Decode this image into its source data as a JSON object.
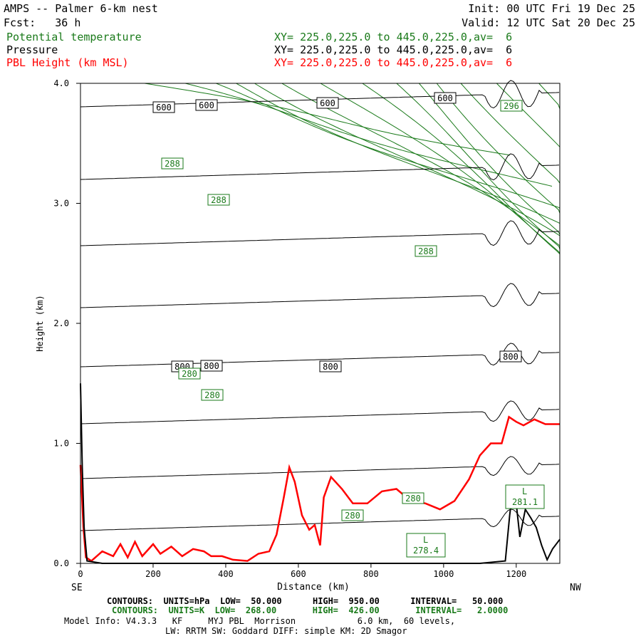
{
  "header": {
    "title": "AMPS -- Palmer 6-km nest",
    "fcst": "Fcst:   36 h",
    "init": "Init: 00 UTC Fri 19 Dec 25",
    "valid": "Valid: 12 UTC Sat 20 Dec 25",
    "fields": [
      {
        "name": "Potential temperature",
        "xy": "XY= 225.0,225.0 to 445.0,225.0,av=  6",
        "color": "#1a7a1a"
      },
      {
        "name": "Pressure",
        "xy": "XY= 225.0,225.0 to 445.0,225.0,av=  6",
        "color": "#000000"
      },
      {
        "name": "PBL Height (km MSL)",
        "xy": "XY= 225.0,225.0 to 445.0,225.0,av=  6",
        "color": "#ff0000"
      }
    ]
  },
  "chart_data": {
    "type": "line",
    "xlabel": "Distance (km)",
    "ylabel": "Height (km)",
    "xlim": [
      0,
      1320
    ],
    "ylim": [
      0,
      4
    ],
    "x_ticks": [
      "0",
      "200",
      "400",
      "600",
      "800",
      "1000",
      "1200"
    ],
    "y_ticks": [
      "0.0",
      "1.0",
      "2.0",
      "3.0",
      "4.0"
    ],
    "left_end_label": "SE",
    "right_end_label": "NW",
    "pressure_labels": [
      "600",
      "600",
      "600",
      "600",
      "800",
      "800",
      "800",
      "800"
    ],
    "theta_labels": [
      "296",
      "288",
      "288",
      "288",
      "280",
      "280",
      "280",
      "280"
    ],
    "low_labels": [
      {
        "letter": "L",
        "value": "278.4"
      },
      {
        "letter": "L",
        "value": "281.1"
      }
    ],
    "series": [
      {
        "name": "PBL Height (km MSL)",
        "color": "#ff0000",
        "points": [
          [
            0,
            0.82
          ],
          [
            8,
            0.3
          ],
          [
            15,
            0.05
          ],
          [
            30,
            0.02
          ],
          [
            60,
            0.1
          ],
          [
            90,
            0.06
          ],
          [
            110,
            0.16
          ],
          [
            130,
            0.05
          ],
          [
            150,
            0.18
          ],
          [
            170,
            0.06
          ],
          [
            200,
            0.16
          ],
          [
            220,
            0.08
          ],
          [
            250,
            0.14
          ],
          [
            280,
            0.06
          ],
          [
            310,
            0.12
          ],
          [
            340,
            0.1
          ],
          [
            360,
            0.06
          ],
          [
            390,
            0.06
          ],
          [
            420,
            0.03
          ],
          [
            460,
            0.02
          ],
          [
            490,
            0.08
          ],
          [
            520,
            0.1
          ],
          [
            540,
            0.24
          ],
          [
            560,
            0.55
          ],
          [
            575,
            0.8
          ],
          [
            590,
            0.68
          ],
          [
            610,
            0.4
          ],
          [
            630,
            0.28
          ],
          [
            645,
            0.32
          ],
          [
            660,
            0.15
          ],
          [
            670,
            0.55
          ],
          [
            690,
            0.72
          ],
          [
            720,
            0.62
          ],
          [
            750,
            0.5
          ],
          [
            790,
            0.5
          ],
          [
            830,
            0.6
          ],
          [
            870,
            0.62
          ],
          [
            910,
            0.52
          ],
          [
            950,
            0.5
          ],
          [
            990,
            0.45
          ],
          [
            1030,
            0.52
          ],
          [
            1070,
            0.7
          ],
          [
            1100,
            0.9
          ],
          [
            1130,
            1.0
          ],
          [
            1160,
            1.0
          ],
          [
            1180,
            1.22
          ],
          [
            1200,
            1.18
          ],
          [
            1220,
            1.15
          ],
          [
            1250,
            1.2
          ],
          [
            1280,
            1.16
          ],
          [
            1320,
            1.16
          ]
        ]
      },
      {
        "name": "Terrain",
        "color": "#000000",
        "points": [
          [
            0,
            1.5
          ],
          [
            5,
            0.8
          ],
          [
            10,
            0.3
          ],
          [
            18,
            0.02
          ],
          [
            60,
            0.0
          ],
          [
            1100,
            0.0
          ],
          [
            1170,
            0.02
          ],
          [
            1182,
            0.4
          ],
          [
            1192,
            0.65
          ],
          [
            1200,
            0.5
          ],
          [
            1210,
            0.22
          ],
          [
            1225,
            0.45
          ],
          [
            1240,
            0.38
          ],
          [
            1255,
            0.3
          ],
          [
            1270,
            0.15
          ],
          [
            1285,
            0.03
          ],
          [
            1300,
            0.12
          ],
          [
            1320,
            0.2
          ]
        ]
      }
    ]
  },
  "footer": {
    "pressure_contours": "CONTOURS:  UNITS=hPa  LOW=  50.000      HIGH=  950.00      INTERVAL=   50.000",
    "theta_contours": "CONTOURS:  UNITS=K  LOW=  268.00       HIGH=  426.00       INTERVAL=   2.0000",
    "model_info": "Model Info: V4.3.3   KF     MYJ PBL  Morrison            6.0 km,  60 levels,",
    "model_info2": "LW: RRTM SW: Goddard DIFF: simple KM: 2D Smagor"
  }
}
